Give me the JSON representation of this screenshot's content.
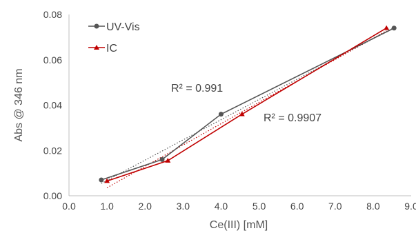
{
  "chart_data": {
    "type": "scatter",
    "xlabel": "Ce(III) [mM]",
    "ylabel": "Abs @ 346 nm",
    "xlim": [
      0,
      9
    ],
    "ylim": [
      0,
      0.08
    ],
    "x_ticks": [
      "0.0",
      "1.0",
      "2.0",
      "3.0",
      "4.0",
      "5.0",
      "6.0",
      "7.0",
      "8.0",
      "9.0"
    ],
    "y_ticks": [
      "0.00",
      "0.02",
      "0.04",
      "0.06",
      "0.08"
    ],
    "grid": false,
    "legend_position": "top-left",
    "series": [
      {
        "name": "UV-Vis",
        "color": "#555555",
        "marker": "circle",
        "x": [
          0.85,
          2.45,
          4.0,
          8.55
        ],
        "y": [
          0.007,
          0.016,
          0.036,
          0.074
        ],
        "trendline": {
          "style": "dotted",
          "r2": "R² = 0.991"
        }
      },
      {
        "name": "IC",
        "color": "#c00000",
        "marker": "triangle",
        "x": [
          1.0,
          2.6,
          4.55,
          8.35
        ],
        "y": [
          0.0065,
          0.0155,
          0.036,
          0.074
        ],
        "trendline": {
          "style": "dotted",
          "r2": "R² = 0.9907"
        }
      }
    ]
  }
}
